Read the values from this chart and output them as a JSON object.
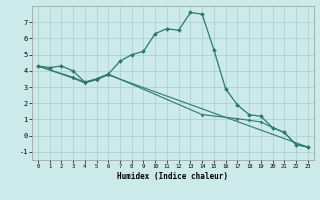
{
  "xlabel": "Humidex (Indice chaleur)",
  "background_color": "#cceaea",
  "grid_color": "#aacccc",
  "line_color": "#2a7a6a",
  "xlim": [
    -0.5,
    23.5
  ],
  "ylim": [
    -1.5,
    8.0
  ],
  "xticks": [
    0,
    1,
    2,
    3,
    4,
    5,
    6,
    7,
    8,
    9,
    10,
    11,
    12,
    13,
    14,
    15,
    16,
    17,
    18,
    19,
    20,
    21,
    22,
    23
  ],
  "yticks": [
    -1,
    0,
    1,
    2,
    3,
    4,
    5,
    6,
    7
  ],
  "line1_x": [
    0,
    1,
    2,
    3,
    4,
    5,
    6,
    7,
    8,
    9,
    10,
    11,
    12,
    13,
    14,
    15,
    16,
    17,
    18,
    19,
    20,
    21,
    22,
    23
  ],
  "line1_y": [
    4.3,
    4.2,
    4.3,
    4.0,
    3.3,
    3.5,
    3.8,
    4.6,
    5.0,
    5.2,
    6.3,
    6.6,
    6.5,
    7.6,
    7.5,
    5.3,
    2.9,
    1.9,
    1.3,
    1.2,
    0.5,
    0.2,
    -0.55,
    -0.7
  ],
  "line2_x": [
    0,
    3,
    4,
    5,
    6,
    23
  ],
  "line2_y": [
    4.3,
    3.55,
    3.25,
    3.45,
    3.75,
    -0.7
  ],
  "line3_x": [
    0,
    3,
    4,
    5,
    6,
    14,
    17,
    18,
    19,
    20,
    21,
    22,
    23
  ],
  "line3_y": [
    4.3,
    3.6,
    3.3,
    3.5,
    3.8,
    1.3,
    1.05,
    0.95,
    0.85,
    0.5,
    0.2,
    -0.55,
    -0.7
  ]
}
